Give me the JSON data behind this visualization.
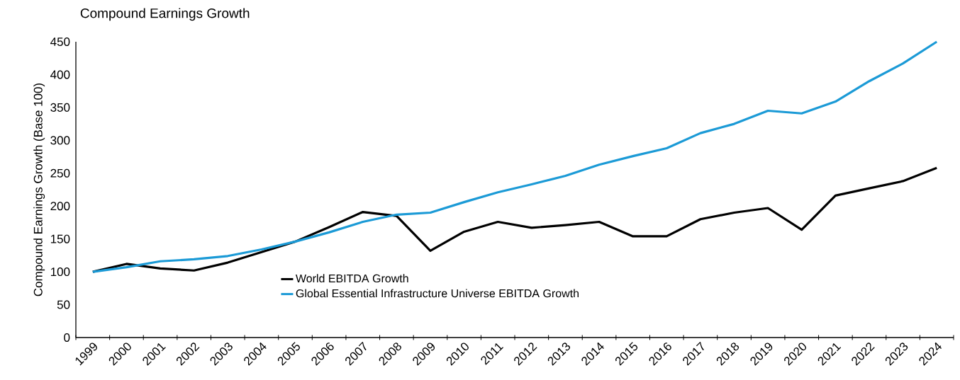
{
  "chart_data": {
    "type": "line",
    "title": "Compound Earnings Growth",
    "ylabel": "Compound Earnings Growth (Base 100)",
    "categories": [
      "1999",
      "2000",
      "2001",
      "2002",
      "2003",
      "2004",
      "2005",
      "2006",
      "2007",
      "2008",
      "2009",
      "2010",
      "2011",
      "2012",
      "2013",
      "2014",
      "2015",
      "2016",
      "2017",
      "2018",
      "2019",
      "2020",
      "2021",
      "2022",
      "2023",
      "2024"
    ],
    "series": [
      {
        "name": "World EBITDA Growth",
        "color": "#000000",
        "values": [
          100,
          112,
          105,
          102,
          114,
          130,
          146,
          168,
          191,
          185,
          132,
          161,
          176,
          167,
          171,
          176,
          154,
          154,
          180,
          190,
          197,
          164,
          216,
          227,
          238,
          258
        ]
      },
      {
        "name": "Global Essential Infrastructure Universe EBITDA Growth",
        "color": "#1b9ad6",
        "values": [
          100,
          107,
          116,
          119,
          124,
          134,
          146,
          160,
          176,
          187,
          190,
          206,
          221,
          233,
          246,
          263,
          276,
          288,
          311,
          325,
          345,
          341,
          359,
          390,
          417,
          450
        ]
      }
    ],
    "ylim": [
      0,
      450
    ],
    "yticks": [
      0,
      50,
      100,
      150,
      200,
      250,
      300,
      350,
      400,
      450
    ],
    "grid": false,
    "legend": "bottom",
    "marker": "none",
    "line_style": "solid"
  }
}
